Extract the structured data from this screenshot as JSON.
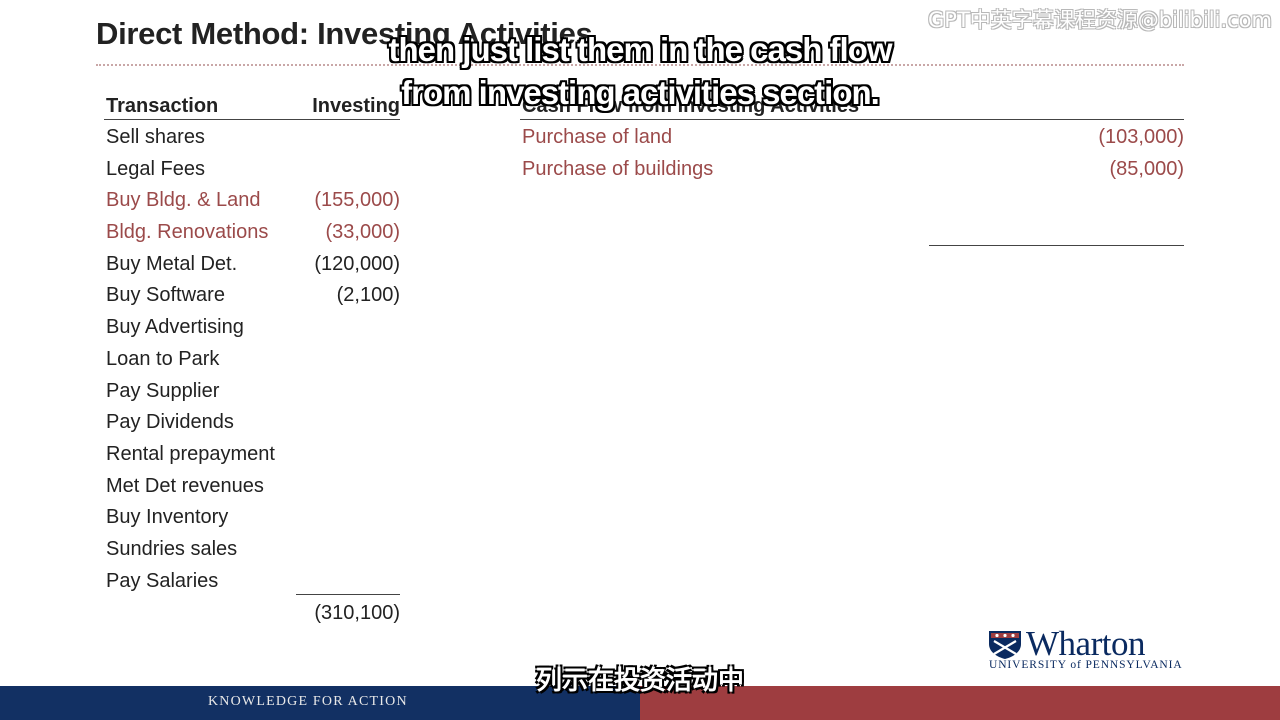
{
  "slide": {
    "title": "Direct Method: Investing Activities",
    "left_table": {
      "col_transaction": "Transaction",
      "col_investing": "Investing",
      "rows": [
        {
          "label": "Sell shares",
          "value": ""
        },
        {
          "label": "Legal Fees",
          "value": ""
        },
        {
          "label": "Buy Bldg. & Land",
          "value": "(155,000)"
        },
        {
          "label": "Bldg. Renovations",
          "value": "(33,000)"
        },
        {
          "label": "Buy Metal Det.",
          "value": "(120,000)"
        },
        {
          "label": "Buy Software",
          "value": "(2,100)"
        },
        {
          "label": "Buy Advertising",
          "value": ""
        },
        {
          "label": "Loan to Park",
          "value": ""
        },
        {
          "label": "Pay Supplier",
          "value": ""
        },
        {
          "label": "Pay Dividends",
          "value": ""
        },
        {
          "label": "Rental prepayment",
          "value": ""
        },
        {
          "label": "Met Det revenues",
          "value": ""
        },
        {
          "label": "Buy Inventory",
          "value": ""
        },
        {
          "label": "Sundries sales",
          "value": ""
        },
        {
          "label": "Pay Salaries",
          "value": ""
        }
      ],
      "total": "(310,100)"
    },
    "right_table": {
      "heading": "Cash Flow from Investing Activities",
      "rows": [
        {
          "label": "Purchase of land",
          "value": "(103,000)"
        },
        {
          "label": "Purchase of buildings",
          "value": "(85,000)"
        }
      ]
    }
  },
  "subtitles": {
    "english_line1": "then just list them in the cash flow",
    "english_line2": "from investing activities section.",
    "chinese": "列示在投资活动中"
  },
  "watermark": "GPT中英字幕课程资源@bilibili.com",
  "logo": {
    "name": "Wharton",
    "university": "UNIVERSITY of PENNSYLVANIA"
  },
  "footer": {
    "tagline": "KNOWLEDGE FOR ACTION"
  },
  "colors": {
    "highlight_text": "#9b4a4a",
    "footer_navy": "#123063",
    "footer_red": "#9e3d40",
    "logo_navy": "#0a2a60"
  }
}
